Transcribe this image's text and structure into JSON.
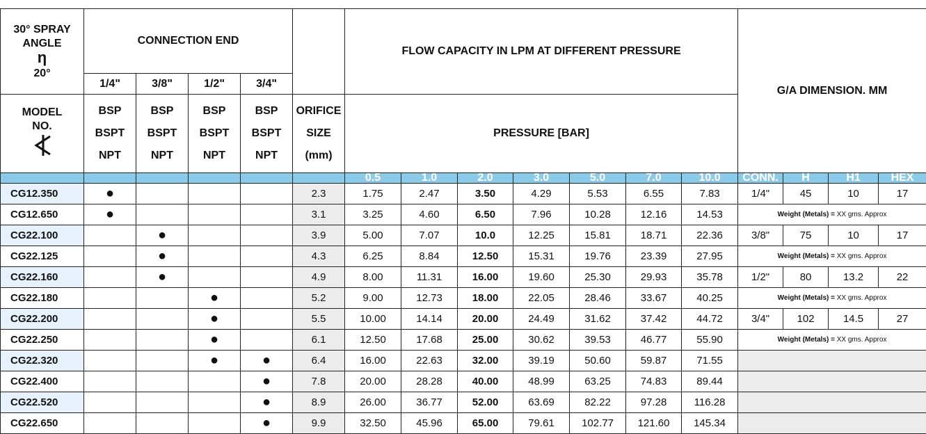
{
  "header": {
    "angle_title": "30° SPRAY ANGLE",
    "eta": "η",
    "angle": "20°",
    "connection_end": "CONNECTION END",
    "sizes": [
      "1/4\"",
      "3/8\"",
      "1/2\"",
      "3/4\""
    ],
    "model": "MODEL NO.",
    "threads": [
      "BSP",
      "BSPT",
      "NPT"
    ],
    "orifice": [
      "ORIFICE",
      "SIZE",
      "(mm)"
    ],
    "flow_title": "FLOW CAPACITY IN LPM AT DIFFERENT PRESSURE",
    "pressure_title": "PRESSURE  [BAR]",
    "ga_title": "G/A  DIMENSION. MM",
    "pressures": [
      "0.5",
      "1.0",
      "2.0",
      "3.0",
      "5.0",
      "7.0",
      "10.0"
    ],
    "dim_heads": [
      "CONN.",
      "H",
      "H1",
      "HEX"
    ]
  },
  "table": {
    "dot": "●",
    "rows": [
      {
        "model": "CG12.350",
        "conn": [
          0
        ],
        "orifice": "2.3",
        "flows": [
          "1.75",
          "2.47",
          "3.50",
          "4.29",
          "5.53",
          "6.55",
          "7.83"
        ]
      },
      {
        "model": "CG12.650",
        "conn": [
          0
        ],
        "orifice": "3.1",
        "flows": [
          "3.25",
          "4.60",
          "6.50",
          "7.96",
          "10.28",
          "12.16",
          "14.53"
        ]
      },
      {
        "model": "CG22.100",
        "conn": [
          1
        ],
        "orifice": "3.9",
        "flows": [
          "5.00",
          "7.07",
          "10.0",
          "12.25",
          "15.81",
          "18.71",
          "22.36"
        ]
      },
      {
        "model": "CG22.125",
        "conn": [
          1
        ],
        "orifice": "4.3",
        "flows": [
          "6.25",
          "8.84",
          "12.50",
          "15.31",
          "19.76",
          "23.39",
          "27.95"
        ]
      },
      {
        "model": "CG22.160",
        "conn": [
          1
        ],
        "orifice": "4.9",
        "flows": [
          "8.00",
          "11.31",
          "16.00",
          "19.60",
          "25.30",
          "29.93",
          "35.78"
        ]
      },
      {
        "model": "CG22.180",
        "conn": [
          2
        ],
        "orifice": "5.2",
        "flows": [
          "9.00",
          "12.73",
          "18.00",
          "22.05",
          "28.46",
          "33.67",
          "40.25"
        ]
      },
      {
        "model": "CG22.200",
        "conn": [
          2
        ],
        "orifice": "5.5",
        "flows": [
          "10.00",
          "14.14",
          "20.00",
          "24.49",
          "31.62",
          "37.42",
          "44.72"
        ]
      },
      {
        "model": "CG22.250",
        "conn": [
          2
        ],
        "orifice": "6.1",
        "flows": [
          "12.50",
          "17.68",
          "25.00",
          "30.62",
          "39.53",
          "46.77",
          "55.90"
        ]
      },
      {
        "model": "CG22.320",
        "conn": [
          2,
          3
        ],
        "orifice": "6.4",
        "flows": [
          "16.00",
          "22.63",
          "32.00",
          "39.19",
          "50.60",
          "59.87",
          "71.55"
        ]
      },
      {
        "model": "CG22.400",
        "conn": [
          3
        ],
        "orifice": "7.8",
        "flows": [
          "20.00",
          "28.28",
          "40.00",
          "48.99",
          "63.25",
          "74.83",
          "89.44"
        ]
      },
      {
        "model": "CG22.520",
        "conn": [
          3
        ],
        "orifice": "8.9",
        "flows": [
          "26.00",
          "36.77",
          "52.00",
          "63.69",
          "82.22",
          "97.28",
          "116.28"
        ]
      },
      {
        "model": "CG22.650",
        "conn": [
          3
        ],
        "orifice": "9.9",
        "flows": [
          "32.50",
          "45.96",
          "65.00",
          "79.61",
          "102.77",
          "121.60",
          "145.34"
        ]
      }
    ],
    "dims": [
      [
        "1/4\"",
        "45",
        "10",
        "17"
      ],
      [
        "3/8\"",
        "75",
        "10",
        "17"
      ],
      [
        "1/2\"",
        "80",
        "13.2",
        "22"
      ],
      [
        "3/4\"",
        "102",
        "14.5",
        "27"
      ]
    ],
    "weight_bold": "Weight (Metals) =",
    "weight_text": "XX gms. Approx"
  }
}
